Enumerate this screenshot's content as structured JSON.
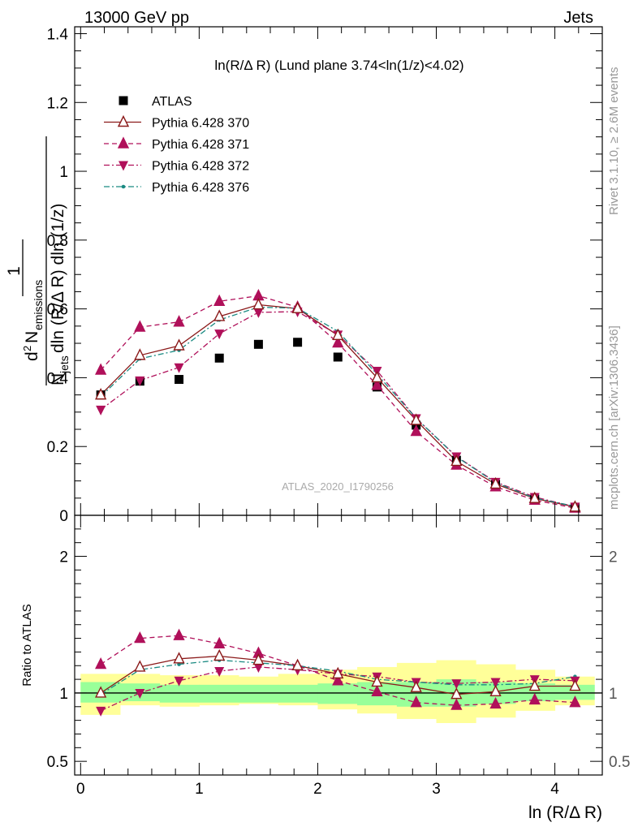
{
  "header": {
    "left": "13000 GeV pp",
    "right": "Jets"
  },
  "chart_data": [
    {
      "type": "scatter",
      "title": "ln(R/Δ R) (Lund plane 3.74<ln(1/z)<4.02)",
      "ylabel": "1 / N_jets · d² N_emissions / dln (R/Δ R) dln (1/z)",
      "ylabel_parts": {
        "numerator": "1",
        "d2": "d",
        "sup2": "2",
        "n": "N",
        "emissions": "emissions",
        "den_n": "N",
        "jets": "jets",
        "den_rest": "dln (R/Δ R) dln (1/z)"
      },
      "xlim": [
        -0.05,
        4.4
      ],
      "ylim": [
        0,
        1.42
      ],
      "yticks": [
        {
          "v": 0,
          "label": "0"
        },
        {
          "v": 0.2,
          "label": "0.2"
        },
        {
          "v": 0.4,
          "label": "0.4"
        },
        {
          "v": 0.6,
          "label": "0.6"
        },
        {
          "v": 0.8,
          "label": "0.8"
        },
        {
          "v": 1.0,
          "label": "1"
        },
        {
          "v": 1.2,
          "label": "1.2"
        },
        {
          "v": 1.4,
          "label": "1.4"
        }
      ],
      "x": [
        0.17,
        0.5,
        0.83,
        1.17,
        1.5,
        1.83,
        2.17,
        2.5,
        2.83,
        3.17,
        3.5,
        3.83,
        4.17
      ],
      "series": [
        {
          "name": "ATLAS",
          "color": "#000000",
          "marker": "square",
          "line": "none",
          "values": [
            0.35,
            0.39,
            0.395,
            0.457,
            0.497,
            0.503,
            0.46,
            0.373,
            0.262,
            0.16,
            0.09,
            0.047,
            0.023
          ]
        },
        {
          "name": "Pythia 6.428 370",
          "color": "#8b1a1a",
          "marker": "triangle-up-open",
          "line": "solid",
          "values": [
            0.35,
            0.465,
            0.493,
            0.578,
            0.612,
            0.601,
            0.523,
            0.4,
            0.276,
            0.157,
            0.091,
            0.049,
            0.024
          ]
        },
        {
          "name": "Pythia 6.428 371",
          "color": "#b0105a",
          "marker": "triangle-up",
          "line": "dash",
          "values": [
            0.422,
            0.547,
            0.562,
            0.622,
            0.638,
            0.605,
            0.501,
            0.378,
            0.244,
            0.146,
            0.083,
            0.044,
            0.021
          ]
        },
        {
          "name": "Pythia 6.428 372",
          "color": "#b0105a",
          "marker": "triangle-down",
          "line": "dashdot",
          "values": [
            0.307,
            0.392,
            0.43,
            0.528,
            0.59,
            0.592,
            0.525,
            0.42,
            0.282,
            0.171,
            0.097,
            0.053,
            0.025
          ]
        },
        {
          "name": "Pythia 6.428 376",
          "color": "#1a8a82",
          "marker": "dot",
          "line": "dashdot",
          "values": [
            0.345,
            0.455,
            0.48,
            0.568,
            0.605,
            0.602,
            0.535,
            0.41,
            0.282,
            0.17,
            0.095,
            0.05,
            0.026
          ]
        }
      ],
      "legend": "top-left",
      "watermark": "ATLAS_2020_I1790256"
    },
    {
      "type": "line",
      "ylabel": "Ratio to ATLAS",
      "xlabel": "ln (R/Δ R)",
      "xlim": [
        -0.05,
        4.4
      ],
      "ylim": [
        0.4,
        2.3
      ],
      "xticks": [
        {
          "v": 0,
          "label": "0"
        },
        {
          "v": 1,
          "label": "1"
        },
        {
          "v": 2,
          "label": "2"
        },
        {
          "v": 3,
          "label": "3"
        },
        {
          "v": 4,
          "label": "4"
        }
      ],
      "yticks": [
        {
          "v": 0.5,
          "label": "0.5"
        },
        {
          "v": 1,
          "label": "1"
        },
        {
          "v": 2,
          "label": "2"
        }
      ],
      "bin_edges": [
        0,
        0.333,
        0.667,
        1.0,
        1.333,
        1.667,
        2.0,
        2.333,
        2.667,
        3.0,
        3.333,
        3.667,
        4.0,
        4.333
      ],
      "band_inner": [
        [
          0.93,
          1.08
        ],
        [
          0.94,
          1.07
        ],
        [
          0.93,
          1.06
        ],
        [
          0.93,
          1.06
        ],
        [
          0.93,
          1.06
        ],
        [
          0.93,
          1.06
        ],
        [
          0.92,
          1.07
        ],
        [
          0.91,
          1.08
        ],
        [
          0.9,
          1.08
        ],
        [
          0.9,
          1.1
        ],
        [
          0.92,
          1.08
        ],
        [
          0.94,
          1.07
        ],
        [
          0.95,
          1.06
        ]
      ],
      "band_outer": [
        [
          0.84,
          1.14
        ],
        [
          0.91,
          1.14
        ],
        [
          0.9,
          1.13
        ],
        [
          0.91,
          1.13
        ],
        [
          0.92,
          1.12
        ],
        [
          0.91,
          1.14
        ],
        [
          0.88,
          1.17
        ],
        [
          0.85,
          1.19
        ],
        [
          0.81,
          1.22
        ],
        [
          0.78,
          1.24
        ],
        [
          0.82,
          1.21
        ],
        [
          0.87,
          1.17
        ],
        [
          0.91,
          1.12
        ]
      ],
      "x": [
        0.17,
        0.5,
        0.83,
        1.17,
        1.5,
        1.83,
        2.17,
        2.5,
        2.83,
        3.17,
        3.5,
        3.83,
        4.17
      ],
      "series": [
        {
          "name": "Pythia 6.428 370",
          "color": "#8b1a1a",
          "marker": "triangle-up-open",
          "line": "solid",
          "values": [
            1.0,
            1.19,
            1.25,
            1.27,
            1.24,
            1.2,
            1.14,
            1.08,
            1.04,
            0.99,
            1.01,
            1.05,
            1.05
          ]
        },
        {
          "name": "Pythia 6.428 371",
          "color": "#b0105a",
          "marker": "triangle-up",
          "line": "dash",
          "values": [
            1.21,
            1.4,
            1.42,
            1.36,
            1.29,
            1.2,
            1.09,
            1.01,
            0.93,
            0.91,
            0.92,
            0.95,
            0.93
          ]
        },
        {
          "name": "Pythia 6.428 372",
          "color": "#b0105a",
          "marker": "triangle-down",
          "line": "dashdot",
          "values": [
            0.87,
            1.0,
            1.09,
            1.16,
            1.19,
            1.17,
            1.14,
            1.12,
            1.08,
            1.07,
            1.08,
            1.1,
            1.09
          ]
        },
        {
          "name": "Pythia 6.428 376",
          "color": "#1a8a82",
          "marker": "dot",
          "line": "dashdot",
          "values": [
            0.99,
            1.17,
            1.21,
            1.24,
            1.22,
            1.2,
            1.16,
            1.1,
            1.08,
            1.06,
            1.06,
            1.07,
            1.12
          ]
        }
      ]
    }
  ],
  "side_labels": {
    "rivet": "Rivet 3.1.10, ≥ 2.6M events",
    "mcplots": "mcplots.cern.ch [arXiv:1306.3436]"
  }
}
